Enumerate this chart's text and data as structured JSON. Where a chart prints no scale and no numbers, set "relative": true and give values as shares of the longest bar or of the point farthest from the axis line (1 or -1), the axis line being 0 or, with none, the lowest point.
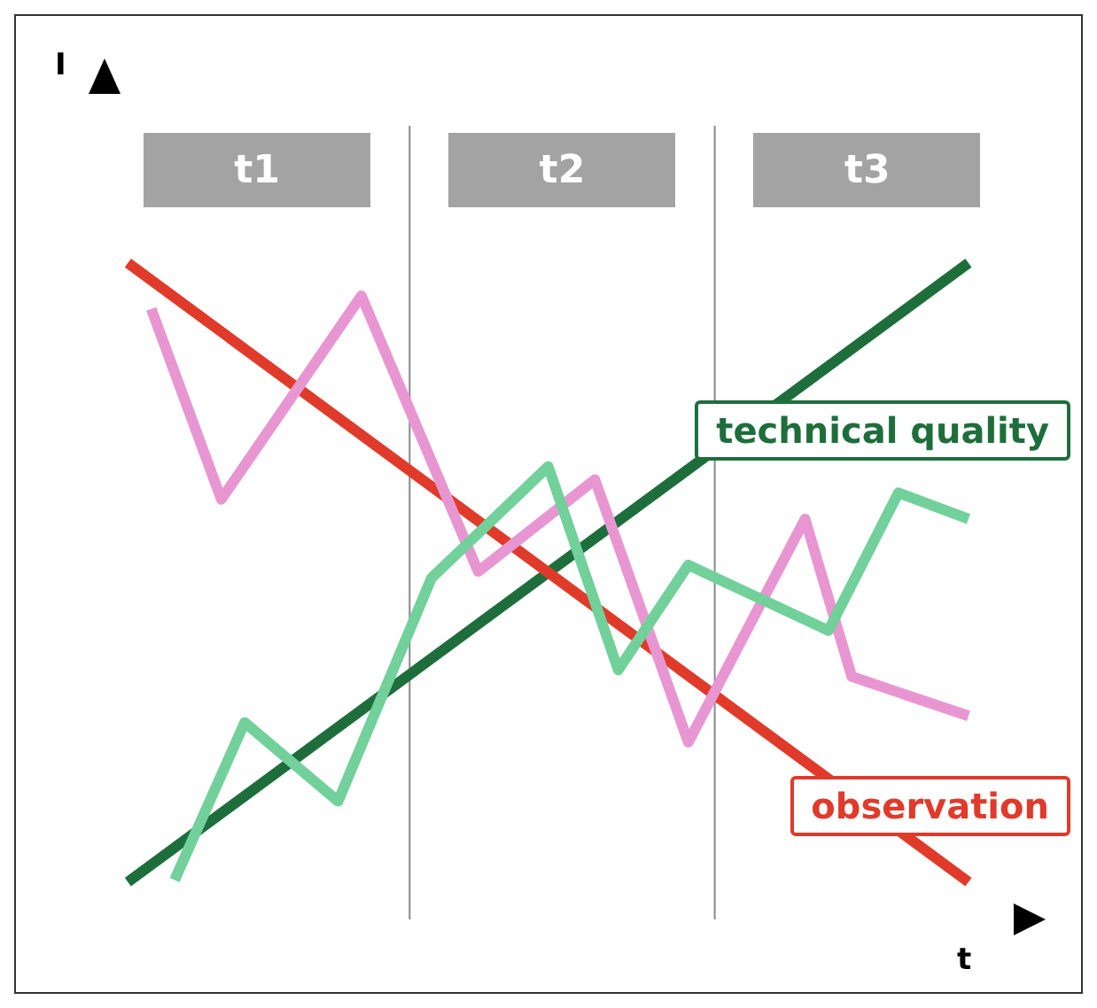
{
  "chart_data": {
    "type": "line",
    "relative": true,
    "xlabel": "t",
    "marker": "none",
    "line_style": "solid",
    "categories": [
      null,
      null,
      null,
      null,
      null,
      null,
      null,
      null,
      null,
      null,
      null,
      null,
      null,
      null,
      null,
      null,
      null,
      null,
      null,
      null,
      null,
      null,
      null,
      null,
      null,
      null,
      null,
      null,
      null,
      null,
      null,
      null,
      null,
      null,
      null,
      null,
      null
    ],
    "series": [
      {
        "name": "technical quality",
        "color": "#1e6e3c",
        "values": [
          0.057,
          null,
          null,
          null,
          null,
          null,
          null,
          null,
          null,
          null,
          null,
          null,
          null,
          null,
          null,
          null,
          null,
          null,
          null,
          null,
          null,
          null,
          null,
          null,
          null,
          null,
          null,
          null,
          null,
          null,
          null,
          null,
          null,
          null,
          null,
          null,
          1
        ]
      },
      {
        "name": "observation",
        "color": "#e03a2a",
        "values": [
          1,
          null,
          null,
          null,
          null,
          null,
          null,
          null,
          null,
          null,
          null,
          null,
          null,
          null,
          null,
          null,
          null,
          null,
          null,
          null,
          null,
          null,
          null,
          null,
          null,
          null,
          null,
          null,
          null,
          null,
          null,
          null,
          null,
          null,
          null,
          null,
          0.057
        ]
      },
      {
        "color": "#e896d2",
        "values": [
          null,
          0.93,
          null,
          null,
          0.64,
          null,
          null,
          null,
          null,
          null,
          0.95,
          null,
          null,
          null,
          null,
          0.53,
          null,
          null,
          null,
          null,
          0.67,
          null,
          null,
          null,
          0.27,
          null,
          null,
          null,
          null,
          0.61,
          null,
          0.37,
          null,
          null,
          null,
          null,
          0.31
        ]
      },
      {
        "color": "#72d09a",
        "values": [
          null,
          null,
          0.06,
          null,
          null,
          0.3,
          null,
          null,
          null,
          0.18,
          null,
          null,
          null,
          0.52,
          null,
          null,
          null,
          null,
          0.69,
          null,
          null,
          0.38,
          null,
          null,
          0.54,
          null,
          null,
          null,
          null,
          null,
          0.44,
          null,
          null,
          0.65,
          null,
          null,
          0.61
        ]
      }
    ],
    "annotations": [
      "I",
      "t1",
      "t2",
      "t3"
    ]
  }
}
